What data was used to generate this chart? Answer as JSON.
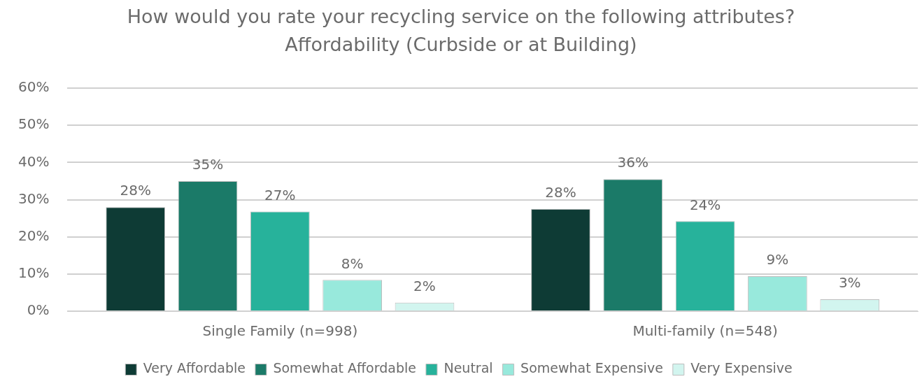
{
  "chart_data": {
    "type": "bar",
    "title": "How would you rate your recycling service on the following attributes? Affordability (Curbside or at Building)",
    "categories": [
      "Single Family (n=998)",
      "Multi-family (n=548)"
    ],
    "series": [
      {
        "name": "Very Affordable",
        "color": "#0e3b35",
        "values": [
          28,
          27.5
        ],
        "value_labels": [
          "28%",
          "28%"
        ]
      },
      {
        "name": "Somewhat Affordable",
        "color": "#1b7a68",
        "values": [
          35,
          35.5
        ],
        "value_labels": [
          "35%",
          "36%"
        ]
      },
      {
        "name": "Neutral",
        "color": "#27b29b",
        "values": [
          26.8,
          24.2
        ],
        "value_labels": [
          "27%",
          "24%"
        ]
      },
      {
        "name": "Somewhat Expensive",
        "color": "#98e9dc",
        "values": [
          8.4,
          9.4
        ],
        "value_labels": [
          "8%",
          "9%"
        ]
      },
      {
        "name": "Very Expensive",
        "color": "#d2f5ef",
        "values": [
          2.3,
          3.2
        ],
        "value_labels": [
          "2%",
          "3%"
        ]
      }
    ],
    "ylim": [
      0,
      60
    ],
    "yticks": [
      {
        "value": 0,
        "label": "0%"
      },
      {
        "value": 10,
        "label": "10%"
      },
      {
        "value": 20,
        "label": "20%"
      },
      {
        "value": 30,
        "label": "30%"
      },
      {
        "value": 40,
        "label": "40%"
      },
      {
        "value": 50,
        "label": "50%"
      },
      {
        "value": 60,
        "label": "60%"
      }
    ],
    "grid": "y",
    "legend": "bottom"
  }
}
